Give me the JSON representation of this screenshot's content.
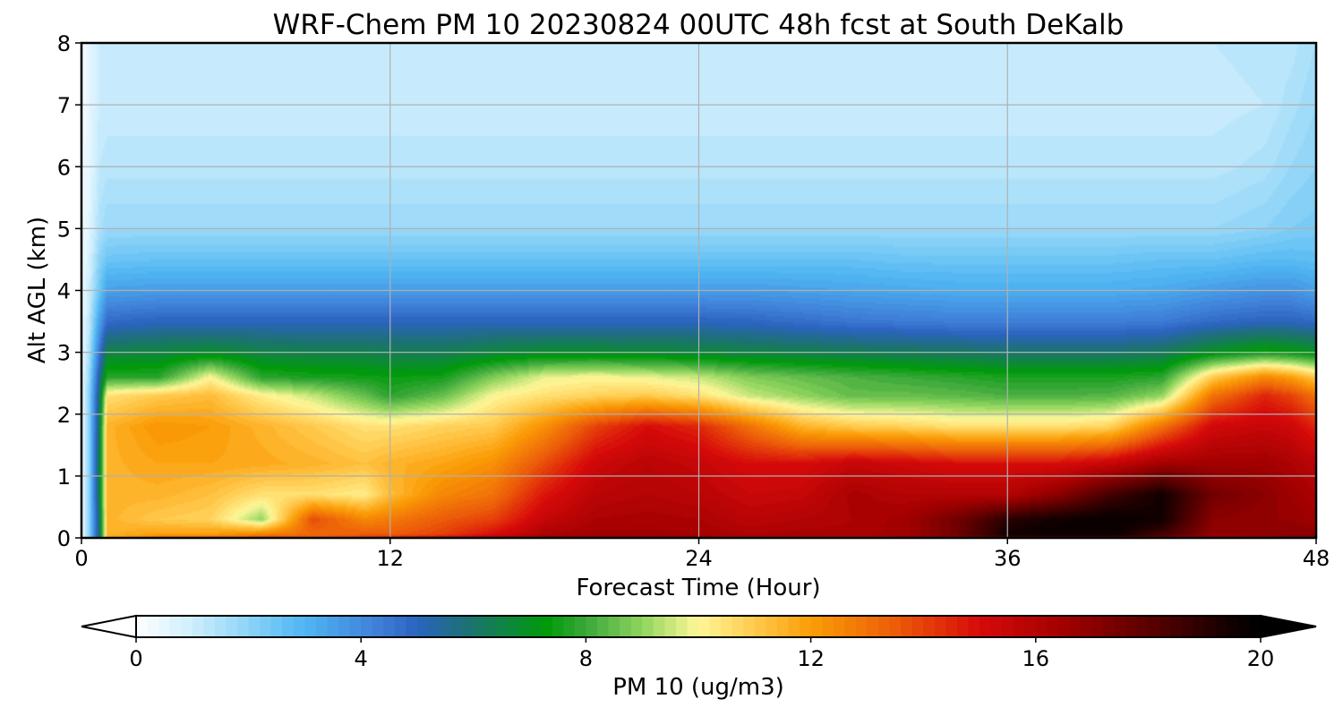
{
  "chart_data": {
    "type": "heatmap",
    "title": "WRF-Chem PM 10  20230824 00UTC 48h fcst at South DeKalb",
    "xlabel": "Forecast Time (Hour)",
    "ylabel": "Alt AGL (km)",
    "xlim": [
      0,
      48
    ],
    "ylim": [
      0,
      8
    ],
    "x_ticks": [
      "0",
      "12",
      "24",
      "36",
      "48"
    ],
    "y_ticks": [
      "0",
      "1",
      "2",
      "3",
      "4",
      "5",
      "6",
      "7",
      "8"
    ],
    "grid": true,
    "z_hours": [
      0,
      0.3,
      0.7,
      1,
      3,
      5,
      7,
      9,
      11,
      12,
      14,
      16,
      18,
      20,
      22,
      24,
      26,
      28,
      30,
      32,
      34,
      36,
      38,
      40,
      42,
      44,
      46,
      47,
      48
    ],
    "z_altitudes_km": [
      0,
      0.05,
      0.3,
      0.7,
      1.2,
      1.8,
      2.3,
      2.6,
      3.0,
      3.5,
      4.0,
      4.5,
      5.0,
      6.0,
      7.0,
      8.0
    ],
    "z_profiles": [
      [
        0.3,
        0.3,
        0.3,
        0.3,
        0.3,
        0.3,
        0.3,
        0.3,
        0.3,
        0.3,
        0.3,
        0.3,
        0.3,
        0.3,
        0.2,
        0.2
      ],
      [
        2,
        2,
        2,
        2,
        2,
        2,
        2,
        1.8,
        1.5,
        1.2,
        1,
        0.8,
        0.6,
        0.5,
        0.5,
        0.5
      ],
      [
        6,
        6,
        6,
        6.5,
        6.5,
        6.3,
        6,
        5.5,
        4.5,
        3.5,
        2.5,
        2,
        1.5,
        1.2,
        1,
        1
      ],
      [
        12,
        11.5,
        11.5,
        11.5,
        11.5,
        11.5,
        10.5,
        7.8,
        6.5,
        4.8,
        3.5,
        2.5,
        1.8,
        1.3,
        1.1,
        1
      ],
      [
        13.5,
        12,
        11,
        11.5,
        11.8,
        12.2,
        11,
        7.8,
        6.6,
        5,
        3.6,
        2.6,
        1.8,
        1.3,
        1.1,
        1.1
      ],
      [
        14,
        12,
        10.8,
        11.2,
        11.8,
        12,
        11.3,
        10,
        6.8,
        5,
        3.6,
        2.6,
        1.8,
        1.3,
        1.1,
        1.1
      ],
      [
        14,
        12.8,
        9,
        10.5,
        11.7,
        11.5,
        10.2,
        7.8,
        6.5,
        5,
        3.6,
        2.6,
        1.8,
        1.3,
        1.1,
        1.1
      ],
      [
        14,
        13.2,
        13.8,
        10.5,
        11.5,
        11,
        9.5,
        7.6,
        6.4,
        5,
        3.6,
        2.6,
        1.8,
        1.3,
        1.1,
        1.1
      ],
      [
        14.5,
        13.5,
        12.5,
        10.2,
        11.2,
        10.5,
        8.5,
        7.5,
        6.4,
        5,
        3.6,
        2.6,
        1.8,
        1.3,
        1.1,
        1.1
      ],
      [
        15,
        13.5,
        12.8,
        11.3,
        11.5,
        10.5,
        7.8,
        7.4,
        6.3,
        5,
        3.6,
        2.6,
        1.8,
        1.3,
        1.1,
        1.1
      ],
      [
        16,
        14,
        13.5,
        12.5,
        11.8,
        10.8,
        8.5,
        7.5,
        6.3,
        5,
        3.6,
        2.6,
        1.8,
        1.3,
        1.1,
        1.1
      ],
      [
        16.5,
        15,
        14,
        13,
        12.3,
        11,
        10,
        8.8,
        6.6,
        5,
        3.6,
        2.6,
        1.8,
        1.3,
        1.1,
        1.1
      ],
      [
        17,
        16.2,
        15.5,
        14.8,
        13.8,
        12.3,
        10.5,
        9.8,
        6.8,
        5,
        3.6,
        2.6,
        1.8,
        1.3,
        1.1,
        1.1
      ],
      [
        17,
        16.5,
        16.2,
        15.8,
        15.3,
        14,
        10.8,
        10,
        6.8,
        5,
        3.6,
        2.6,
        1.8,
        1.3,
        1.1,
        1.1
      ],
      [
        17,
        16.5,
        16.3,
        16,
        15.8,
        15,
        11,
        9.8,
        6.7,
        5,
        3.6,
        2.6,
        1.8,
        1.3,
        1.1,
        1.1
      ],
      [
        16.8,
        16.4,
        16.2,
        15.8,
        15.5,
        14.5,
        10.5,
        9.5,
        6.6,
        5,
        3.6,
        2.6,
        1.8,
        1.3,
        1.1,
        1.1
      ],
      [
        16.5,
        16.2,
        15.8,
        15.4,
        15,
        13,
        9.5,
        8.8,
        6.5,
        4.9,
        3.6,
        2.6,
        1.8,
        1.3,
        1.1,
        1.1
      ],
      [
        16.5,
        16.3,
        16,
        15.5,
        15,
        11.5,
        9,
        8.5,
        6.4,
        4.7,
        3.5,
        2.6,
        1.8,
        1.3,
        1.1,
        1.1
      ],
      [
        16.5,
        16.3,
        16.2,
        16.3,
        15.5,
        11,
        8.5,
        8.2,
        6.3,
        4.5,
        3.4,
        2.6,
        1.8,
        1.3,
        1.1,
        1.1
      ],
      [
        16.7,
        16.5,
        16.5,
        16,
        15.3,
        10.8,
        8.5,
        8,
        6.2,
        4.4,
        3.3,
        2.5,
        1.8,
        1.3,
        1.1,
        1.1
      ],
      [
        17,
        17.5,
        17.5,
        16,
        15,
        10.5,
        8.4,
        7.8,
        6.1,
        4.3,
        3.2,
        2.5,
        1.8,
        1.3,
        1.1,
        1.1
      ],
      [
        17.5,
        19.5,
        19,
        16,
        15,
        10.5,
        8.2,
        7.6,
        6,
        4.3,
        3.2,
        2.5,
        1.8,
        1.3,
        1.1,
        1.1
      ],
      [
        17.5,
        19.8,
        19.5,
        17,
        15,
        10.5,
        8.2,
        7.6,
        6,
        4.3,
        3.2,
        2.5,
        1.8,
        1.3,
        1.1,
        1.1
      ],
      [
        17.5,
        19.8,
        19.8,
        18.5,
        15.5,
        10.8,
        8.3,
        7.6,
        6,
        4.3,
        3.2,
        2.5,
        1.8,
        1.3,
        1.1,
        1.1
      ],
      [
        17,
        18.5,
        19.5,
        19.5,
        16.5,
        13,
        9,
        7.8,
        6.2,
        4.4,
        3.3,
        2.6,
        1.8,
        1.3,
        1.1,
        1.1
      ],
      [
        16.5,
        16.8,
        17,
        17.5,
        16.5,
        15.2,
        13,
        11,
        7,
        4.8,
        3.6,
        2.6,
        1.8,
        1.3,
        1.1,
        1.2
      ],
      [
        17,
        16.8,
        16.8,
        17,
        16.5,
        15.5,
        14.5,
        12.5,
        7.5,
        5,
        3.8,
        2.8,
        2,
        1.5,
        1.2,
        1.3
      ],
      [
        17.5,
        17,
        16.8,
        16.6,
        16.2,
        15.3,
        14,
        12,
        7.3,
        5,
        3.8,
        2.8,
        2.2,
        1.8,
        1.5,
        1.3
      ],
      [
        17.5,
        17,
        16.5,
        16.2,
        15.8,
        14.5,
        13,
        11,
        7,
        4.8,
        3.5,
        2.7,
        2.3,
        2,
        1.8,
        1.6
      ]
    ],
    "colorbar": {
      "label": "PM 10  (ug/m3)",
      "min": 0,
      "max": 20,
      "ticks": [
        "0",
        "4",
        "8",
        "12",
        "16",
        "20"
      ],
      "extend": "both",
      "levels": 100,
      "color_stops": [
        {
          "value": 0,
          "color": "#ffffff"
        },
        {
          "value": 1,
          "color": "#cdeefd"
        },
        {
          "value": 2.3,
          "color": "#79cbf6"
        },
        {
          "value": 3,
          "color": "#4fb5f2"
        },
        {
          "value": 4.3,
          "color": "#3f7fd8"
        },
        {
          "value": 5,
          "color": "#2b63c0"
        },
        {
          "value": 5.8,
          "color": "#1e6f7a"
        },
        {
          "value": 7.3,
          "color": "#009a0a"
        },
        {
          "value": 8,
          "color": "#3aa83a"
        },
        {
          "value": 9,
          "color": "#8fd45e"
        },
        {
          "value": 10,
          "color": "#fff799"
        },
        {
          "value": 11,
          "color": "#ffc94d"
        },
        {
          "value": 12,
          "color": "#fb9d06"
        },
        {
          "value": 13.5,
          "color": "#ec5c09"
        },
        {
          "value": 15,
          "color": "#d70a0a"
        },
        {
          "value": 16.5,
          "color": "#a20000"
        },
        {
          "value": 18,
          "color": "#5b0000"
        },
        {
          "value": 19.5,
          "color": "#100000"
        },
        {
          "value": 20,
          "color": "#000000"
        }
      ]
    }
  }
}
